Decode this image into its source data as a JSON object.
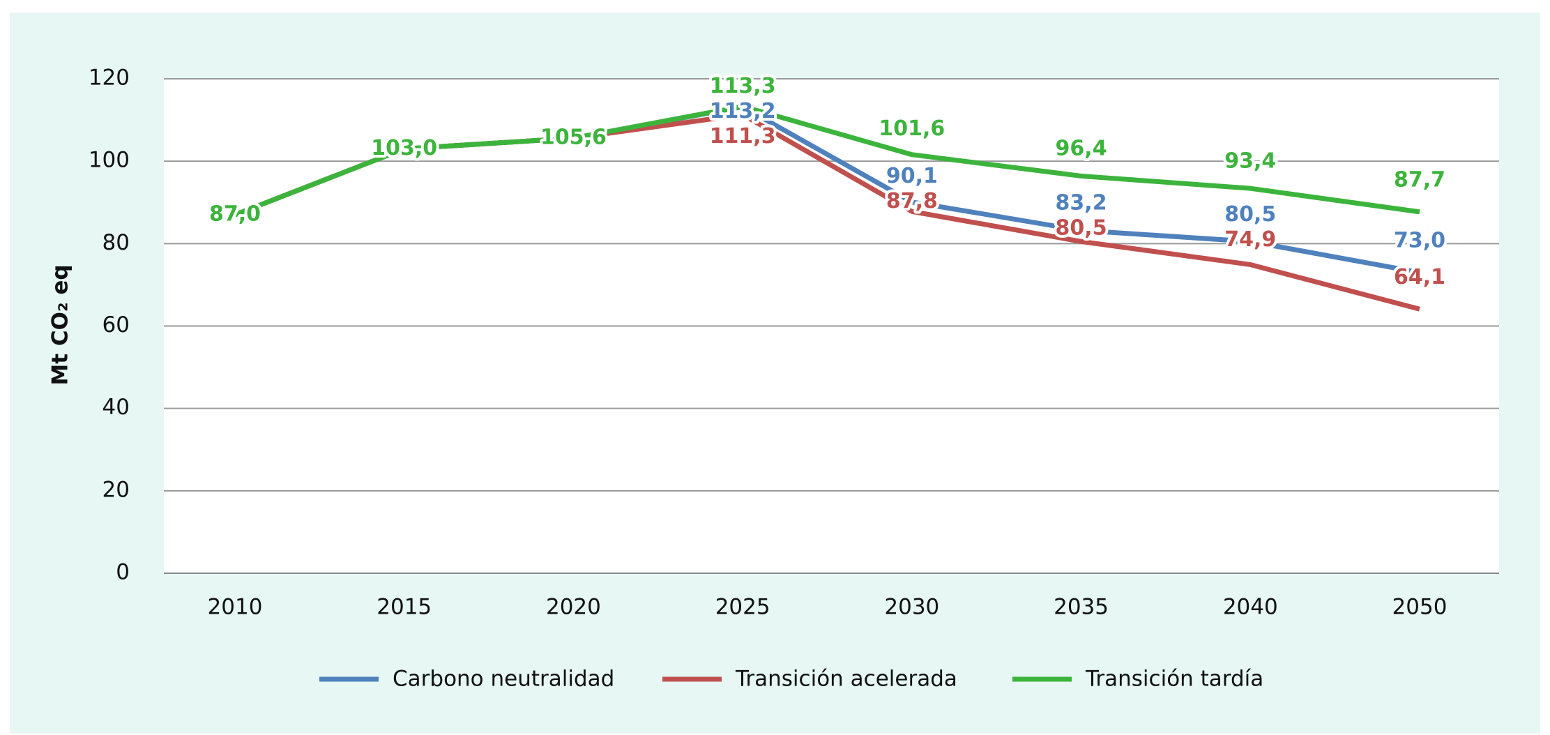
{
  "chart_data": {
    "type": "line",
    "y_label": "Mt CO₂ eq",
    "categories": [
      "2010",
      "2015",
      "2020",
      "2025",
      "2030",
      "2035",
      "2040",
      "2050"
    ],
    "series": [
      {
        "name": "Carbono neutralidad",
        "color": "#4f81bd",
        "values": [
          87.0,
          103.0,
          105.6,
          113.2,
          90.1,
          83.2,
          80.5,
          73.0
        ],
        "value_labels": [
          null,
          null,
          null,
          "113,2",
          "90,1",
          "83,2",
          "80,5",
          "73,0"
        ]
      },
      {
        "name": "Transición acelerada",
        "color": "#c0504d",
        "values": [
          87.0,
          103.0,
          105.6,
          111.3,
          87.8,
          80.5,
          74.9,
          64.1
        ],
        "value_labels": [
          null,
          null,
          null,
          "111,3",
          "87,8",
          "80,5",
          "74,9",
          "64,1"
        ]
      },
      {
        "name": "Transición tardía",
        "color": "#3cb43c",
        "values": [
          87.0,
          103.0,
          105.6,
          113.3,
          101.6,
          96.4,
          93.4,
          87.7
        ],
        "value_labels": [
          "87,0",
          "103,0",
          "105,6",
          "113,3",
          "101,6",
          "96,4",
          "93,4",
          "87,7"
        ]
      }
    ],
    "ylim": [
      0,
      120
    ],
    "yticks": [
      0,
      20,
      40,
      60,
      80,
      100,
      120
    ],
    "grid": true,
    "legend": "bottom"
  }
}
